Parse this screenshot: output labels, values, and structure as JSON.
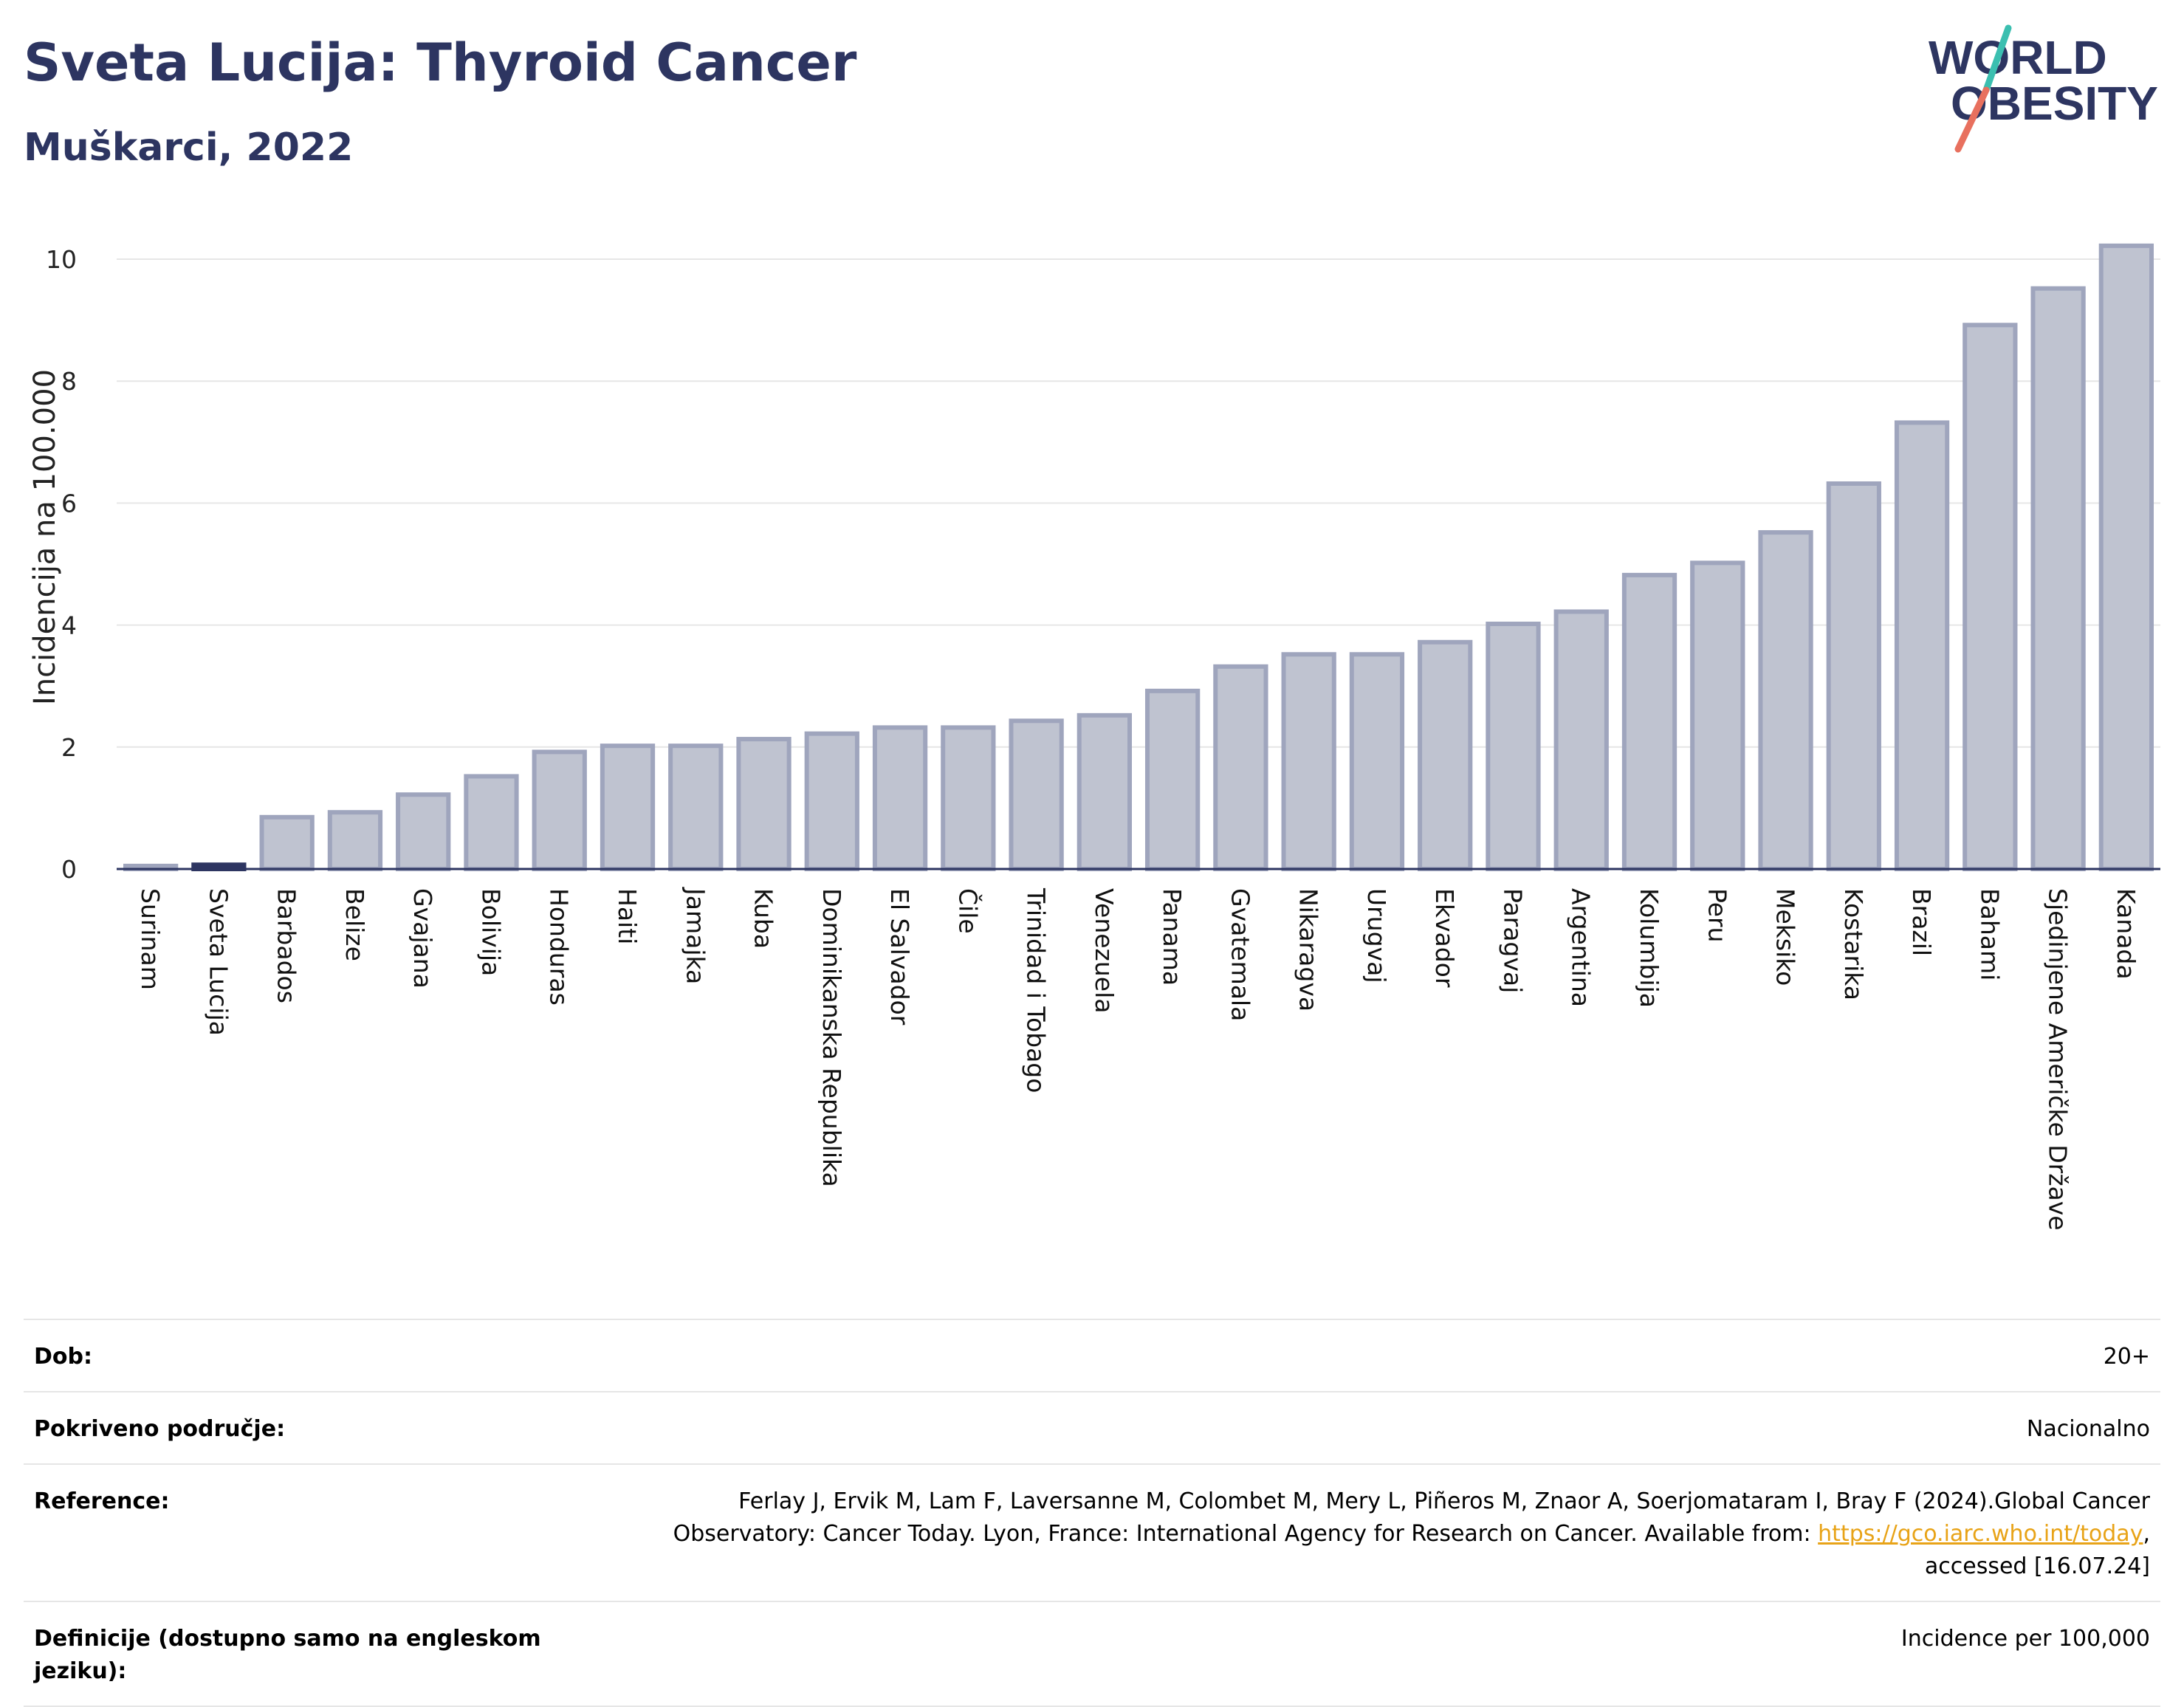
{
  "header": {
    "title": "Sveta Lucija: Thyroid Cancer",
    "subtitle": "Muškarci, 2022"
  },
  "logo": {
    "line1": "WORLD",
    "line2": "OBESITY"
  },
  "colors": {
    "bar_fill": "#bfc3d0",
    "bar_stroke": "#9fa5bd",
    "highlight": "#2d3561",
    "title": "#2d3561",
    "grid": "#e6e6e6"
  },
  "chart_data": {
    "type": "bar",
    "ylabel": "Incidencija na 100.000",
    "ylim": [
      0,
      10.4
    ],
    "yticks": [
      0,
      2,
      4,
      6,
      8,
      10
    ],
    "grid": true,
    "highlight": "Sveta Lucija",
    "categories": [
      "Surinam",
      "Sveta Lucija",
      "Barbados",
      "Belize",
      "Gvajana",
      "Bolivija",
      "Honduras",
      "Haiti",
      "Jamajka",
      "Kuba",
      "Dominikanska Republika",
      "El Salvador",
      "Čile",
      "Trinidad i Tobago",
      "Venezuela",
      "Panama",
      "Gvatemala",
      "Nikaragva",
      "Urugvaj",
      "Ekvador",
      "Paragvaj",
      "Argentina",
      "Kolumbija",
      "Peru",
      "Meksiko",
      "Kostarika",
      "Brazil",
      "Bahami",
      "Sjedinjene Američke Države",
      "Kanada"
    ],
    "values": [
      0.05,
      0.07,
      0.85,
      0.93,
      1.22,
      1.52,
      1.92,
      2.02,
      2.02,
      2.13,
      2.22,
      2.32,
      2.32,
      2.43,
      2.52,
      2.92,
      3.32,
      3.52,
      3.52,
      3.72,
      4.02,
      4.22,
      4.82,
      5.02,
      5.52,
      6.32,
      7.32,
      8.92,
      9.52,
      10.22
    ]
  },
  "info": {
    "rows": [
      {
        "key": "Dob:",
        "value": "20+"
      },
      {
        "key": "Pokriveno područje:",
        "value": "Nacionalno"
      },
      {
        "key": "Reference:",
        "value_pre": "Ferlay J, Ervik M, Lam F, Laversanne M, Colombet M, Mery L, Piñeros M, Znaor A, Soerjomataram I, Bray F (2024).Global Cancer Observatory: Cancer Today. Lyon, France: International Agency for Research on Cancer. Available from: ",
        "link": "https://gco.iarc.who.int/today",
        "value_post": ", accessed [16.07.24]"
      },
      {
        "key": "Definicije (dostupno samo na engleskom jeziku):",
        "value": "Incidence per 100,000"
      }
    ]
  }
}
